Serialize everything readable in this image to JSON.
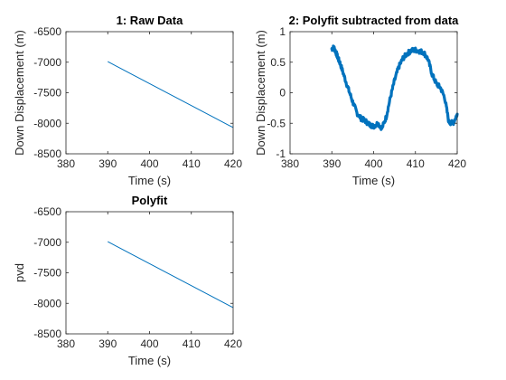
{
  "chart_data": [
    {
      "type": "line",
      "title": "1: Raw Data",
      "xlabel": "Time (s)",
      "ylabel": "Down Displacement (m)",
      "xlim": [
        380,
        420
      ],
      "ylim": [
        -8500,
        -6500
      ],
      "xticks": [
        380,
        390,
        400,
        410,
        420
      ],
      "yticks": [
        -6500,
        -7000,
        -7500,
        -8000,
        -8500
      ],
      "grid": false,
      "series": [
        {
          "x": [
            390,
            420
          ],
          "y": [
            -6990,
            -8070
          ],
          "color": "#0072BD",
          "style": "thin"
        }
      ]
    },
    {
      "type": "line",
      "title": "2: Polyfit subtracted from data",
      "xlabel": "Time (s)",
      "ylabel": "Down Displacement (m)",
      "xlim": [
        380,
        420
      ],
      "ylim": [
        -1,
        1
      ],
      "xticks": [
        380,
        390,
        400,
        410,
        420
      ],
      "yticks": [
        1,
        0.5,
        0,
        -0.5,
        -1
      ],
      "grid": false,
      "series": [
        {
          "x": [
            390,
            390.5,
            391,
            391.5,
            392,
            393,
            394,
            395,
            396,
            397,
            398,
            399,
            400,
            401,
            402,
            403,
            404,
            405,
            406,
            407,
            408,
            409,
            410,
            411,
            412,
            413,
            414,
            415,
            416,
            417,
            418,
            419,
            420
          ],
          "y": [
            0.72,
            0.74,
            0.66,
            0.56,
            0.48,
            0.26,
            0.05,
            -0.15,
            -0.33,
            -0.42,
            -0.46,
            -0.52,
            -0.55,
            -0.5,
            -0.58,
            -0.4,
            -0.08,
            0.2,
            0.42,
            0.56,
            0.64,
            0.69,
            0.7,
            0.68,
            0.66,
            0.55,
            0.3,
            0.15,
            0.08,
            -0.08,
            -0.48,
            -0.5,
            -0.35
          ],
          "color": "#0072BD",
          "style": "thick-noisy"
        }
      ]
    },
    {
      "type": "line",
      "title": "Polyfit",
      "xlabel": "Time (s)",
      "ylabel": "pvd",
      "xlim": [
        380,
        420
      ],
      "ylim": [
        -8500,
        -6500
      ],
      "xticks": [
        380,
        390,
        400,
        410,
        420
      ],
      "yticks": [
        -6500,
        -7000,
        -7500,
        -8000,
        -8500
      ],
      "grid": false,
      "series": [
        {
          "x": [
            390,
            420
          ],
          "y": [
            -6990,
            -8070
          ],
          "color": "#0072BD",
          "style": "thin"
        }
      ]
    }
  ]
}
